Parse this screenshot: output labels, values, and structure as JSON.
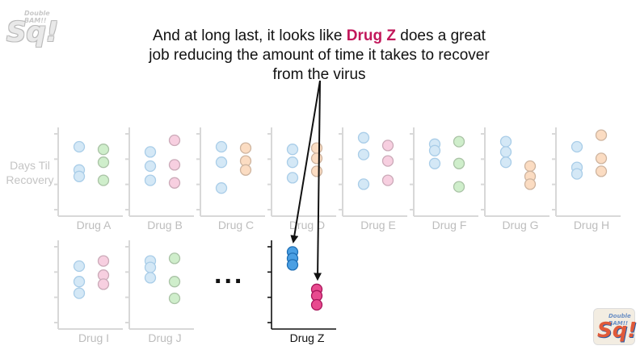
{
  "caption": {
    "before": "And at long last, it looks like ",
    "highlight": "Drug Z",
    "after": " does a great job reducing the amount of time it takes to recover from the virus"
  },
  "y_axis_label": "Days Til Recovery",
  "ellipsis": "...",
  "logo": {
    "main": "Sq!",
    "sub": "Double BAM!!"
  },
  "colors": {
    "highlight": "#c2185b",
    "blue_faded": "#d4e8f6",
    "blue_faded_stroke": "#a9cde8",
    "blue_active": "#4a9fe3",
    "blue_active_stroke": "#1f6fb5",
    "magenta_active": "#e84a8f",
    "magenta_active_stroke": "#a8155a",
    "faded_axis": "#d8d8d8"
  },
  "panels": [
    {
      "label": "Drug A",
      "faded": true,
      "left_values": [
        1,
        2.8,
        3.3
      ],
      "right_values": [
        1.2,
        2.2,
        3.6
      ],
      "right_color": "#cfeecb"
    },
    {
      "label": "Drug B",
      "faded": true,
      "left_values": [
        1.4,
        2.5,
        3.6
      ],
      "right_values": [
        0.5,
        2.4,
        3.8
      ],
      "right_color": "#f7cfe0"
    },
    {
      "label": "Drug C",
      "faded": true,
      "left_values": [
        1,
        2.2,
        4.2
      ],
      "right_values": [
        1.1,
        2.1,
        2.8
      ],
      "right_color": "#fbdcc2"
    },
    {
      "label": "Drug D",
      "faded": true,
      "left_values": [
        1.2,
        2.2,
        3.4
      ],
      "right_values": [
        1.1,
        1.9,
        2.9
      ],
      "right_color": "#fbdcc2"
    },
    {
      "label": "Drug E",
      "faded": true,
      "left_values": [
        0.3,
        1.6,
        3.9
      ],
      "right_values": [
        0.9,
        2.1,
        3.6
      ],
      "right_color": "#f7cfe0"
    },
    {
      "label": "Drug F",
      "faded": true,
      "left_values": [
        0.8,
        1.3,
        2.3
      ],
      "right_values": [
        0.6,
        2.3,
        4.1
      ],
      "right_color": "#cfeecb"
    },
    {
      "label": "Drug G",
      "faded": true,
      "left_values": [
        0.6,
        1.4,
        2.2
      ],
      "right_values": [
        2.5,
        3.3,
        3.9
      ],
      "right_color": "#fbdcc2"
    },
    {
      "label": "Drug H",
      "faded": true,
      "left_values": [
        1,
        2.6,
        3.1
      ],
      "right_values": [
        0.1,
        1.9,
        2.9
      ],
      "right_color": "#fbdcc2"
    },
    {
      "label": "Drug I",
      "faded": true,
      "left_values": [
        1.5,
        2.7,
        3.6
      ],
      "right_values": [
        1.1,
        2.2,
        2.9
      ],
      "right_color": "#f7cfe0"
    },
    {
      "label": "Drug J",
      "faded": true,
      "left_values": [
        1.1,
        1.6,
        2.4
      ],
      "right_values": [
        0.9,
        2.7,
        4.0
      ],
      "right_color": "#cfeecb"
    },
    {
      "label": "Drug Z",
      "faded": false,
      "left_values": [
        0.4,
        0.9,
        1.4
      ],
      "right_values": [
        3.3,
        3.8,
        4.5
      ],
      "right_color": "#e84a8f"
    }
  ]
}
